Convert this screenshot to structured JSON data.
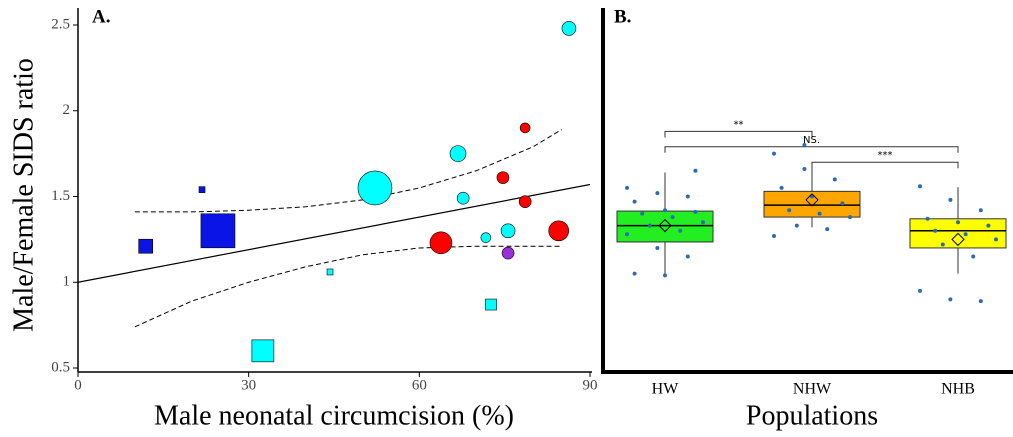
{
  "chart_data": [
    {
      "type": "scatter",
      "panel_label": "A.",
      "ylabel": "Male/Female SIDS ratio",
      "xlabel": "Male neonatal circumcision (%)",
      "xlim": [
        0,
        90
      ],
      "xticks": [
        0,
        30,
        60,
        90
      ],
      "ylim": [
        0.5,
        2.5
      ],
      "yticks": [
        0.5,
        1,
        1.5,
        2,
        2.5
      ],
      "x": [
        11.9,
        21.8,
        24.6,
        32.5,
        44.3,
        52.2,
        63.8,
        66.8,
        67.7,
        74.7,
        71.7,
        75.6,
        75.6,
        72.6,
        78.6,
        78.6,
        84.5,
        86.3
      ],
      "values": [
        1.21,
        1.54,
        1.3,
        0.6,
        1.06,
        1.55,
        1.23,
        1.75,
        1.49,
        1.61,
        1.26,
        1.3,
        1.17,
        0.87,
        1.9,
        1.47,
        1.3,
        2.48
      ],
      "sizes": [
        14,
        6,
        34,
        22,
        6,
        34,
        22,
        16,
        12,
        12,
        10,
        14,
        12,
        11,
        10,
        12,
        20,
        14
      ],
      "markers": [
        "square",
        "square",
        "square",
        "square",
        "square",
        "circle",
        "circle",
        "circle",
        "circle",
        "circle",
        "circle",
        "circle",
        "circle",
        "square",
        "circle",
        "circle",
        "circle",
        "circle"
      ],
      "colors": [
        "#0a14e6",
        "#0a14e6",
        "#0a14e6",
        "#00ffff",
        "#00ffff",
        "#00ffff",
        "#ff0000",
        "#00ffff",
        "#00ffff",
        "#ff0000",
        "#00ffff",
        "#00ffff",
        "#9b30d9",
        "#00ffff",
        "#ff0000",
        "#ff0000",
        "#ff0000",
        "#00ffff"
      ],
      "fit": {
        "x": [
          0,
          90
        ],
        "values": [
          1.0,
          1.57
        ]
      },
      "band": {
        "x": [
          10,
          20,
          30,
          40,
          50,
          60,
          70,
          80,
          85
        ],
        "upper": [
          1.41,
          1.41,
          1.42,
          1.44,
          1.48,
          1.55,
          1.65,
          1.79,
          1.89
        ],
        "lower": [
          0.74,
          0.89,
          1.0,
          1.09,
          1.16,
          1.2,
          1.21,
          1.21,
          1.21
        ]
      }
    },
    {
      "type": "box",
      "panel_label": "B.",
      "xlabel": "Populations",
      "ylim": [
        0.5,
        2.5
      ],
      "categories": [
        "HW",
        "NHW",
        "NHB"
      ],
      "colors": [
        "#22ee22",
        "#ffa500",
        "#ffff00"
      ],
      "min": [
        1.04,
        1.32,
        1.05
      ],
      "q1": [
        1.235,
        1.38,
        1.2
      ],
      "median": [
        1.33,
        1.45,
        1.3
      ],
      "q3": [
        1.415,
        1.53,
        1.37
      ],
      "max": [
        1.64,
        1.7,
        1.555
      ],
      "mean": [
        1.33,
        1.48,
        1.25
      ],
      "points": [
        [
          1.55,
          1.52,
          1.5,
          1.47,
          1.42,
          1.41,
          1.4,
          1.38,
          1.35,
          1.33,
          1.3,
          1.28,
          1.2,
          1.15,
          1.05,
          1.04,
          1.65
        ],
        [
          1.75,
          1.66,
          1.6,
          1.55,
          1.5,
          1.46,
          1.42,
          1.4,
          1.38,
          1.33,
          1.31,
          1.27,
          1.8
        ],
        [
          1.56,
          1.48,
          1.42,
          1.37,
          1.35,
          1.33,
          1.3,
          1.28,
          1.25,
          1.22,
          1.15,
          0.95,
          0.9,
          0.89
        ]
      ],
      "significance": [
        {
          "from": 0,
          "to": 1,
          "y": 1.88,
          "label": "**"
        },
        {
          "from": 0,
          "to": 2,
          "y": 1.79,
          "label": "NS."
        },
        {
          "from": 1,
          "to": 2,
          "y": 1.7,
          "label": "***"
        }
      ]
    }
  ]
}
